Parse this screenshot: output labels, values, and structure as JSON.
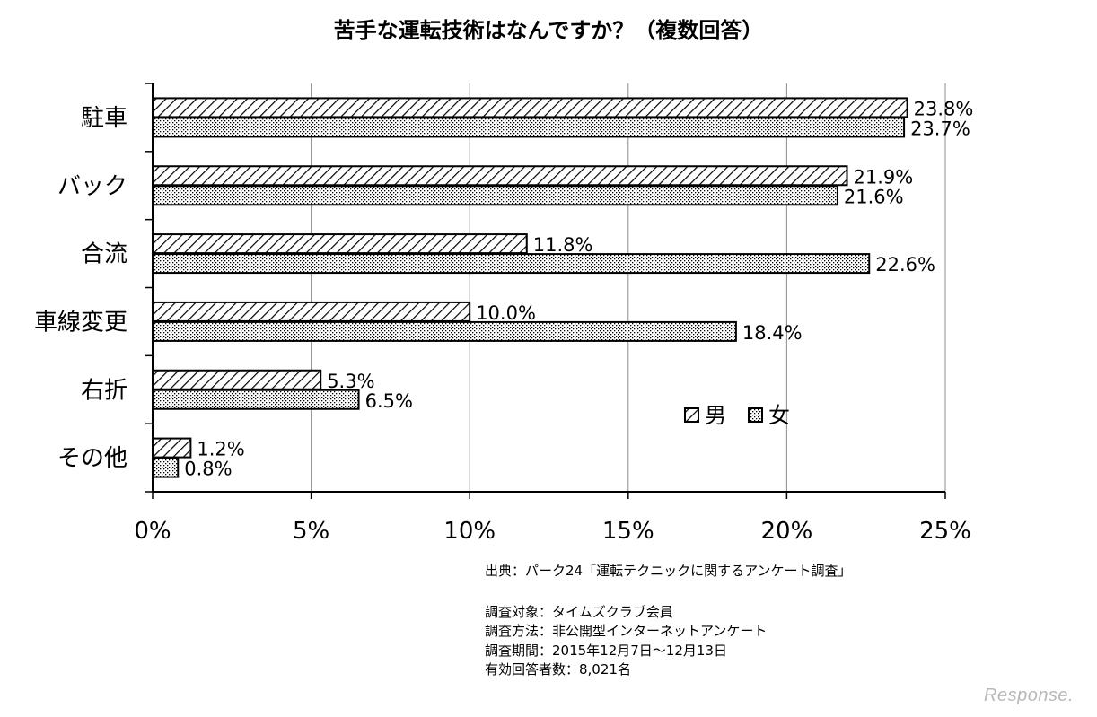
{
  "chart_data": {
    "type": "bar",
    "orientation": "horizontal",
    "title": "苦手な運転技術はなんですか？（複数回答）",
    "categories": [
      "駐車",
      "バック",
      "合流",
      "車線変更",
      "右折",
      "その他"
    ],
    "series": [
      {
        "name": "男",
        "values": [
          23.8,
          21.9,
          11.8,
          10.0,
          5.3,
          1.2
        ],
        "labels": [
          "23.8%",
          "21.9%",
          "11.8%",
          "10.0%",
          "5.3%",
          "1.2%"
        ],
        "pattern": "diagonal-hatch"
      },
      {
        "name": "女",
        "values": [
          23.7,
          21.6,
          22.6,
          18.4,
          6.5,
          0.8
        ],
        "labels": [
          "23.7%",
          "21.6%",
          "22.6%",
          "18.4%",
          "6.5%",
          "0.8%"
        ],
        "pattern": "dots"
      }
    ],
    "xlim": [
      0,
      25
    ],
    "xticks": [
      0,
      5,
      10,
      15,
      20,
      25
    ],
    "xtick_labels": [
      "0%",
      "5%",
      "10%",
      "15%",
      "20%",
      "25%"
    ],
    "grid": true,
    "legend_position": "right"
  },
  "notes": {
    "source": "出典：パーク24「運転テクニックに関するアンケート調査」",
    "target": "調査対象：タイムズクラブ会員",
    "method": "調査方法：非公開型インターネットアンケート",
    "period": "調査期間：2015年12月7日～12月13日",
    "respondents": "有効回答者数：8,021名"
  },
  "watermark": "Response."
}
